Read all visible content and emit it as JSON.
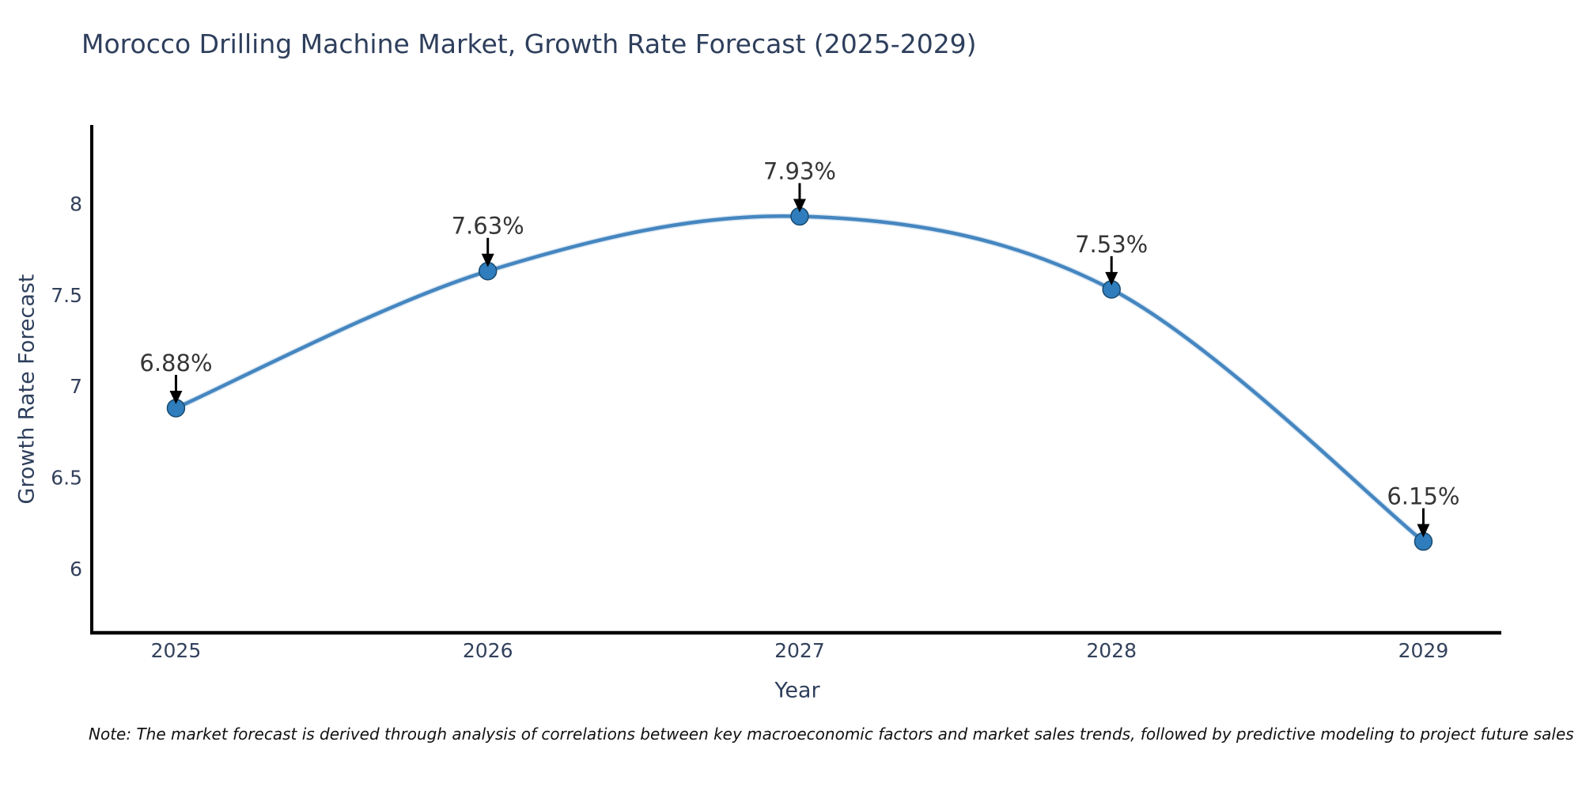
{
  "chart": {
    "title": "Morocco Drilling Machine Market, Growth Rate Forecast (2025-2029)",
    "xlabel": "Year",
    "ylabel": "Growth Rate Forecast",
    "note": "Note: The market forecast is derived through analysis of correlations between key macroeconomic factors and market sales trends, followed by predictive modeling to project future sales"
  },
  "chart_data": {
    "type": "line",
    "title": "Morocco Drilling Machine Market, Growth Rate Forecast (2025-2029)",
    "xlabel": "Year",
    "ylabel": "Growth Rate Forecast",
    "x": [
      2025,
      2026,
      2027,
      2028,
      2029
    ],
    "series": [
      {
        "name": "Growth Rate Forecast",
        "values": [
          6.88,
          7.63,
          7.93,
          7.53,
          6.15
        ]
      }
    ],
    "point_labels": [
      "6.88%",
      "7.63%",
      "7.93%",
      "7.53%",
      "6.15%"
    ],
    "xticks": [
      "2025",
      "2026",
      "2027",
      "2028",
      "2029"
    ],
    "yticks": [
      6,
      6.5,
      7,
      7.5,
      8
    ],
    "xlim": [
      2024.73,
      2029.25
    ],
    "ylim": [
      5.65,
      8.43
    ],
    "grid": false,
    "legend": false,
    "line_shape": "spline",
    "annotations": "arrow-down-to-point",
    "colors": {
      "line": "#4586c0",
      "line_halo": "#b9d4ea",
      "marker_fill": "#2f7dbd",
      "marker_stroke": "#1a4a6e",
      "arrow": "#000000",
      "annotation_text": "#363636",
      "axis_line": "#000000",
      "tick_text": "#33415c",
      "title_text": "#2e3f5c"
    }
  }
}
